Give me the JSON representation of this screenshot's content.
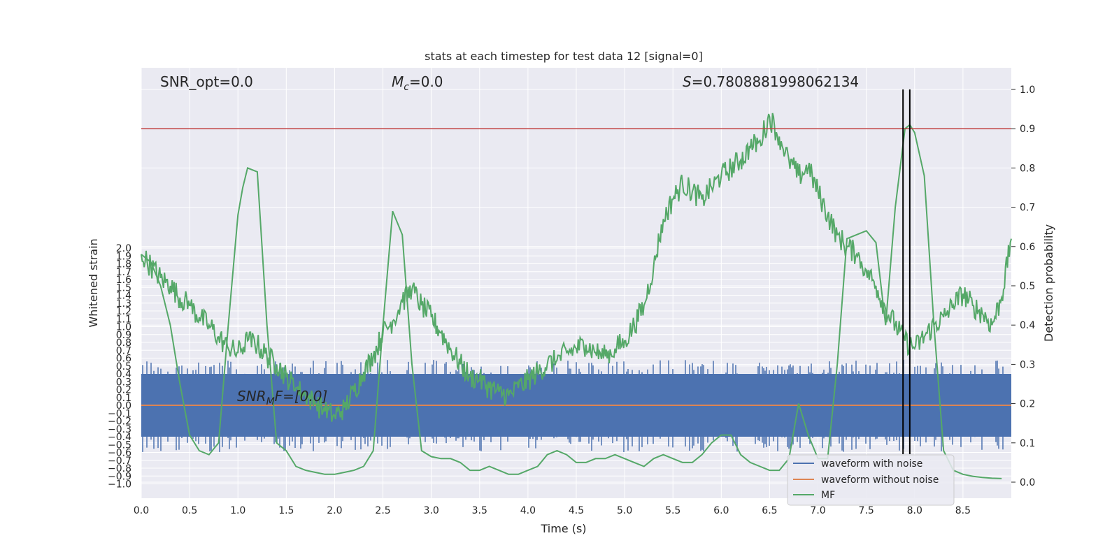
{
  "chart_data": {
    "type": "line",
    "title": "stats at each timestep for test data 12 [signal=0]",
    "xlabel": "Time (s)",
    "ylabel": "Whitened strain",
    "ylabel_right": "Detection probability",
    "xlim": [
      0.0,
      9.0
    ],
    "ylim": [
      -1.0,
      2.0
    ],
    "ylim_right": [
      -0.02,
      1.02
    ],
    "xticks": [
      "0.0",
      "0.5",
      "1.0",
      "1.5",
      "2.0",
      "2.5",
      "3.0",
      "3.5",
      "4.0",
      "4.5",
      "5.0",
      "5.5",
      "6.0",
      "6.5",
      "7.0",
      "7.5",
      "8.0",
      "8.5"
    ],
    "yticks": [
      "2.0",
      "1.9",
      "1.8",
      "1.7",
      "1.6",
      "1.5",
      "1.4",
      "1.3",
      "1.2",
      "1.1",
      "1.0",
      "0.9",
      "0.8",
      "0.7",
      "0.6",
      "0.5",
      "0.4",
      "0.3",
      "0.2",
      "0.1",
      "0.0",
      "−0.1",
      "−0.2",
      "−0.3",
      "−0.4",
      "−0.5",
      "−0.6",
      "−0.7",
      "−0.8",
      "−0.9",
      "−1.0"
    ],
    "yticks_right": [
      "1.0",
      "0.9",
      "0.8",
      "0.7",
      "0.6",
      "0.5",
      "0.4",
      "0.3",
      "0.2",
      "0.1",
      "0.0"
    ],
    "threshold": 0.9,
    "vertical_markers": [
      7.88,
      7.95
    ],
    "annotations": {
      "snr_opt": "SNR_opt=0.0",
      "mc_symbol": "M",
      "mc_sub": "c",
      "mc_value": "=0.0",
      "s_symbol": "S",
      "s_value": "=0.7808881998062134",
      "snr_mf_symbol": "SNR",
      "snr_mf_sub": "M",
      "snr_mf_rest": "F=[0.0]"
    },
    "legend": {
      "position": "lower right",
      "entries": [
        "waveform with noise",
        "waveform without noise",
        "MF"
      ]
    },
    "colors": {
      "noise": "#4c72b0",
      "clean": "#dd8452",
      "mf": "#55a868",
      "threshold": "#c03d3e",
      "marker": "#000000",
      "plot_bg": "#eaeaf2",
      "grid": "#ffffff"
    },
    "series": [
      {
        "name": "waveform with noise",
        "axis": "left",
        "description": "dense noise band",
        "envelope": [
          -0.4,
          0.4
        ]
      },
      {
        "name": "waveform without noise",
        "axis": "left",
        "values_constant": 0.0
      },
      {
        "name": "MF",
        "axis": "right",
        "segments": [
          {
            "x": [
              0.0,
              0.1,
              0.2,
              0.3,
              0.4,
              0.5,
              0.6,
              0.7,
              0.8,
              0.9,
              1.0,
              1.1,
              1.2,
              1.3,
              1.4,
              1.5,
              1.6,
              1.7,
              1.8,
              1.9,
              2.0,
              2.1,
              2.2,
              2.3,
              2.4,
              2.5,
              2.6,
              2.7,
              2.8,
              2.9,
              3.0,
              3.1,
              3.2,
              3.3,
              3.4,
              3.5,
              3.6,
              3.7,
              3.8,
              3.9,
              4.0,
              4.1,
              4.2,
              4.3,
              4.4,
              4.5,
              4.6,
              4.7,
              4.8,
              4.9,
              5.0,
              5.1,
              5.2,
              5.3,
              5.4,
              5.5,
              5.6,
              5.7,
              5.8,
              5.9,
              6.0,
              6.1,
              6.2,
              6.3,
              6.4,
              6.5,
              6.6,
              6.7,
              6.8,
              6.9,
              7.0,
              7.1,
              7.2,
              7.3,
              7.4,
              7.5,
              7.6,
              7.7,
              7.8,
              7.9,
              8.0,
              8.1,
              8.2,
              8.3,
              8.4,
              8.5,
              8.6,
              8.7,
              8.8,
              8.9,
              9.0
            ],
            "y": [
              0.58,
              0.55,
              0.52,
              0.5,
              0.47,
              0.45,
              0.42,
              0.4,
              0.37,
              0.34,
              0.33,
              0.36,
              0.35,
              0.32,
              0.3,
              0.27,
              0.24,
              0.22,
              0.2,
              0.18,
              0.17,
              0.19,
              0.23,
              0.28,
              0.32,
              0.38,
              0.41,
              0.46,
              0.49,
              0.45,
              0.42,
              0.38,
              0.34,
              0.3,
              0.27,
              0.26,
              0.24,
              0.23,
              0.22,
              0.24,
              0.26,
              0.28,
              0.3,
              0.31,
              0.33,
              0.34,
              0.35,
              0.33,
              0.32,
              0.34,
              0.36,
              0.4,
              0.45,
              0.55,
              0.67,
              0.72,
              0.76,
              0.74,
              0.72,
              0.75,
              0.78,
              0.8,
              0.82,
              0.85,
              0.87,
              0.93,
              0.88,
              0.82,
              0.78,
              0.8,
              0.74,
              0.68,
              0.63,
              0.6,
              0.58,
              0.54,
              0.5,
              0.44,
              0.4,
              0.36,
              0.34,
              0.37,
              0.4,
              0.42,
              0.45,
              0.48,
              0.45,
              0.43,
              0.4,
              0.47,
              0.62
            ]
          },
          {
            "x": [
              0.0,
              0.1,
              0.2,
              0.3,
              0.4,
              0.5,
              0.6,
              0.7,
              0.8,
              0.9,
              1.0,
              1.05,
              1.1,
              1.2,
              1.3,
              1.4,
              1.5,
              1.6,
              1.7,
              1.8,
              1.9,
              2.0,
              2.1,
              2.2,
              2.3,
              2.4,
              2.5,
              2.6,
              2.7,
              2.8,
              2.9,
              3.0,
              3.1,
              3.2,
              3.3,
              3.4,
              3.5,
              3.6,
              3.7,
              3.8,
              3.9,
              4.0,
              4.1,
              4.2,
              4.3,
              4.4,
              4.5,
              4.6,
              4.7,
              4.8,
              4.9,
              5.0,
              5.1,
              5.2,
              5.3,
              5.4,
              5.5,
              5.6,
              5.7,
              5.8,
              5.9,
              6.0,
              6.1,
              6.2,
              6.3,
              6.4,
              6.5,
              6.6,
              6.7,
              6.8,
              6.9,
              7.0,
              7.1,
              7.2,
              7.3,
              7.4,
              7.5,
              7.6,
              7.7,
              7.8,
              7.9,
              7.95,
              8.0,
              8.1,
              8.2,
              8.3,
              8.4,
              8.5,
              8.6,
              8.7,
              8.8,
              8.9
            ],
            "y": [
              0.58,
              0.56,
              0.5,
              0.4,
              0.25,
              0.12,
              0.08,
              0.07,
              0.1,
              0.4,
              0.68,
              0.75,
              0.8,
              0.79,
              0.4,
              0.1,
              0.08,
              0.04,
              0.03,
              0.025,
              0.02,
              0.02,
              0.025,
              0.03,
              0.04,
              0.08,
              0.4,
              0.69,
              0.63,
              0.3,
              0.08,
              0.065,
              0.06,
              0.06,
              0.05,
              0.03,
              0.03,
              0.04,
              0.03,
              0.02,
              0.02,
              0.03,
              0.04,
              0.07,
              0.08,
              0.07,
              0.05,
              0.05,
              0.06,
              0.06,
              0.07,
              0.06,
              0.05,
              0.04,
              0.06,
              0.07,
              0.06,
              0.05,
              0.05,
              0.07,
              0.1,
              0.12,
              0.12,
              0.07,
              0.05,
              0.04,
              0.03,
              0.03,
              0.06,
              0.2,
              0.12,
              0.06,
              0.06,
              0.3,
              0.62,
              0.63,
              0.64,
              0.61,
              0.4,
              0.7,
              0.9,
              0.91,
              0.89,
              0.78,
              0.4,
              0.08,
              0.03,
              0.02,
              0.015,
              0.012,
              0.01,
              0.009
            ]
          }
        ]
      }
    ]
  }
}
